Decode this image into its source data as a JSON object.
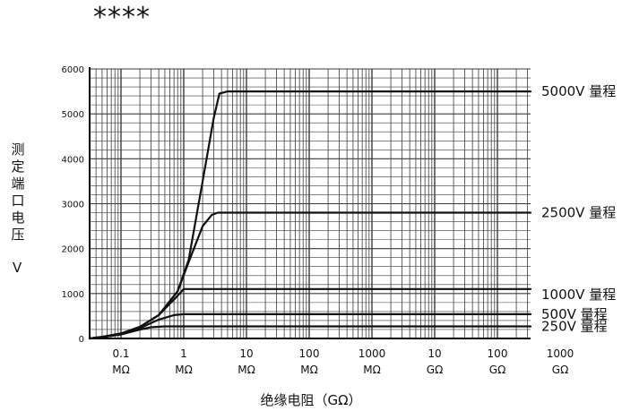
{
  "header": {
    "stars": "****"
  },
  "chart_data": {
    "type": "line",
    "title": "",
    "ylabel": "测定端口电压",
    "yunit": "V",
    "xlabel": "绝缘电阻（GΩ）",
    "x_scale": "log",
    "ylim": [
      0,
      6000
    ],
    "y_ticks": [
      0,
      1000,
      2000,
      3000,
      4000,
      5000,
      6000
    ],
    "x_tick_labels": [
      {
        "value": 0.1,
        "line1": "0.1",
        "line2": "MΩ"
      },
      {
        "value": 1,
        "line1": "1",
        "line2": "MΩ"
      },
      {
        "value": 10,
        "line1": "10",
        "line2": "MΩ"
      },
      {
        "value": 100,
        "line1": "100",
        "line2": "MΩ"
      },
      {
        "value": 1000,
        "line1": "1000",
        "line2": "MΩ"
      },
      {
        "value": 10000,
        "line1": "10",
        "line2": "GΩ"
      },
      {
        "value": 100000,
        "line1": "100",
        "line2": "GΩ"
      },
      {
        "value": 1000000,
        "line1": "1000",
        "line2": "GΩ"
      }
    ],
    "x_unit_note": "x values in MΩ",
    "grid": true,
    "series": [
      {
        "name": "5000V 量程",
        "x": [
          0.01,
          0.05,
          0.1,
          0.2,
          0.4,
          0.8,
          1.2,
          2,
          3,
          3.7,
          5,
          10,
          1000000
        ],
        "y": [
          0,
          35,
          110,
          260,
          520,
          1050,
          1750,
          3500,
          4900,
          5450,
          5500,
          5500,
          5500
        ]
      },
      {
        "name": "2500V 量程",
        "x": [
          0.01,
          0.05,
          0.1,
          0.2,
          0.4,
          0.8,
          1.2,
          2,
          2.8,
          3.5,
          10,
          1000000
        ],
        "y": [
          0,
          35,
          110,
          260,
          520,
          1050,
          1700,
          2500,
          2750,
          2800,
          2800,
          2800
        ]
      },
      {
        "name": "1000V 量程",
        "x": [
          0.01,
          0.05,
          0.1,
          0.2,
          0.4,
          0.8,
          1.0,
          1.5,
          10,
          1000000
        ],
        "y": [
          0,
          35,
          110,
          260,
          520,
          950,
          1100,
          1100,
          1100,
          1100
        ]
      },
      {
        "name": "500V 量程",
        "x": [
          0.01,
          0.05,
          0.1,
          0.2,
          0.4,
          0.7,
          1,
          10,
          1000000
        ],
        "y": [
          0,
          30,
          100,
          230,
          420,
          520,
          540,
          540,
          540
        ]
      },
      {
        "name": "250V 量程",
        "x": [
          0.01,
          0.05,
          0.1,
          0.2,
          0.3,
          0.5,
          10,
          1000000
        ],
        "y": [
          0,
          25,
          90,
          200,
          250,
          270,
          270,
          270
        ]
      }
    ],
    "line_color": "#111111",
    "grid_color": "#3a3a3a"
  }
}
